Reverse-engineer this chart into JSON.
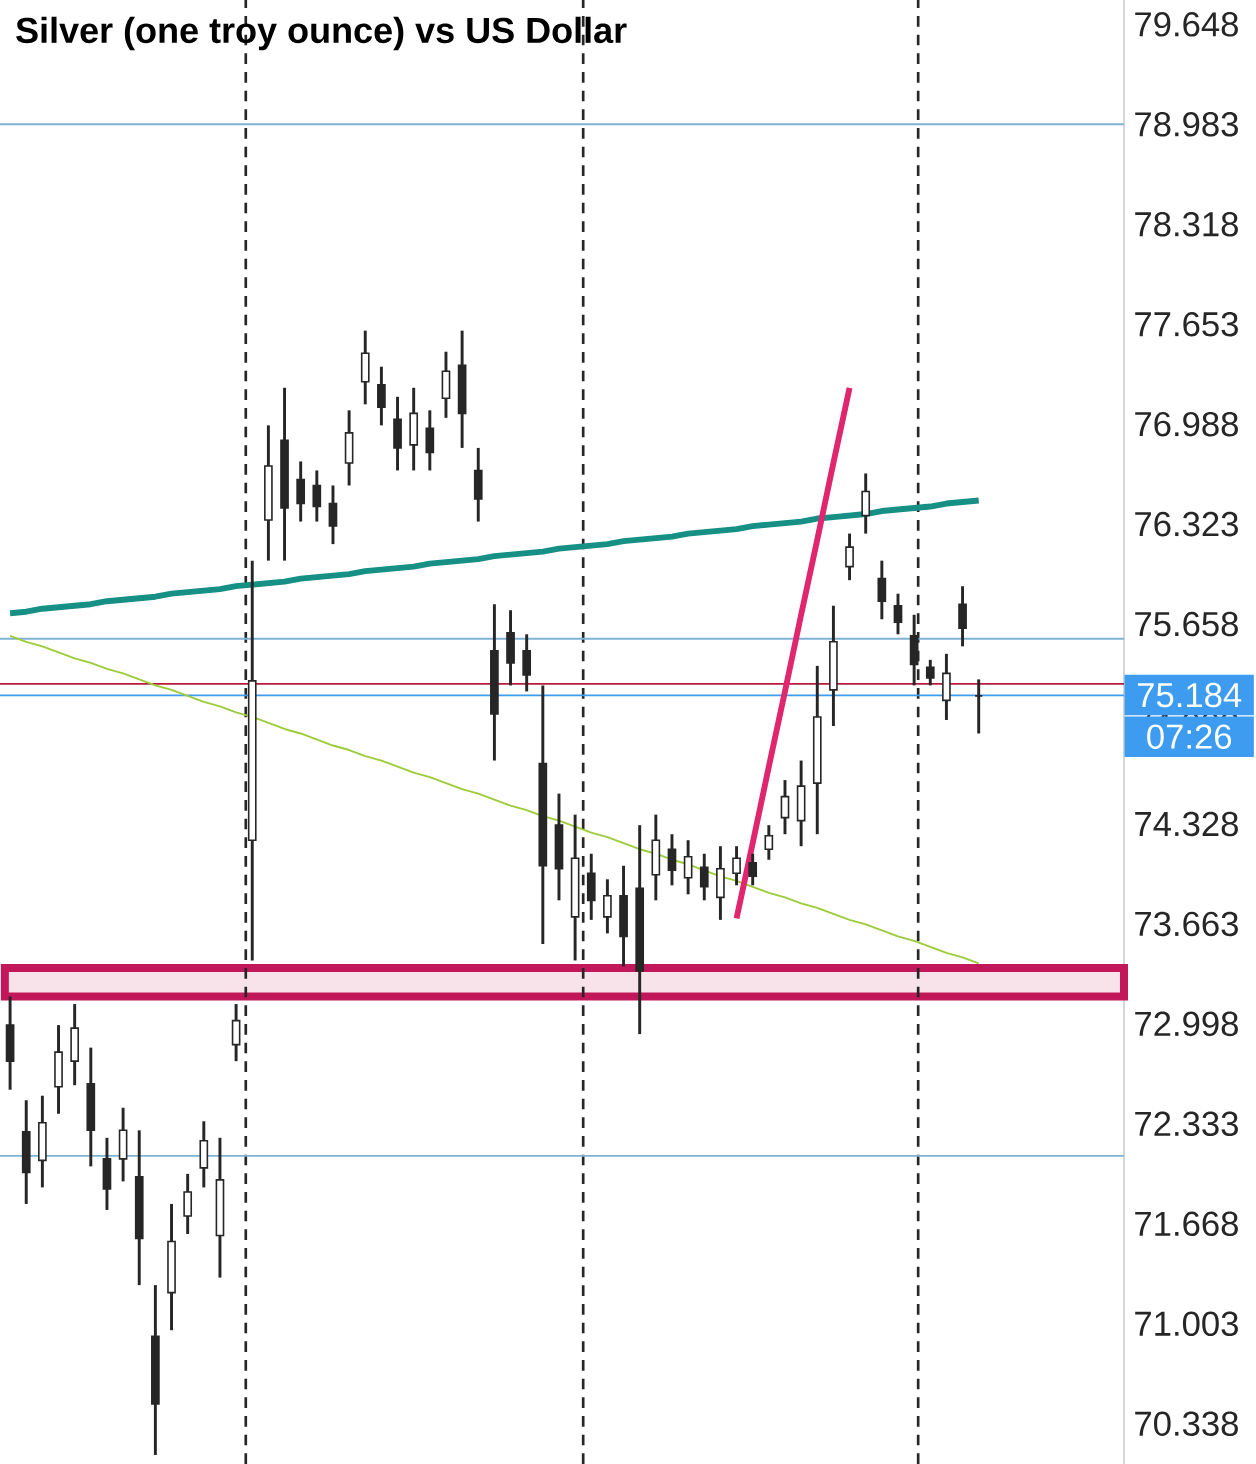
{
  "chart_data": {
    "type": "candlestick",
    "title": "Silver (one troy ounce) vs US Dollar",
    "categories": [
      null,
      null,
      null,
      null,
      null,
      null,
      null,
      null,
      null,
      null,
      null,
      null,
      null,
      null,
      null,
      null,
      null,
      null,
      null,
      null,
      null,
      null,
      null,
      null,
      null,
      null,
      null,
      null,
      null,
      null,
      null,
      null,
      null,
      null,
      null,
      null,
      null,
      null,
      null,
      null,
      null,
      null,
      null,
      null,
      null,
      null,
      null,
      null,
      null,
      null,
      null,
      null,
      null,
      null,
      null,
      null,
      null,
      null,
      null,
      null,
      null
    ],
    "ohlc": [
      [
        72.99,
        73.18,
        72.56,
        72.75
      ],
      [
        72.28,
        72.49,
        71.8,
        72.01
      ],
      [
        72.09,
        72.52,
        71.91,
        72.34
      ],
      [
        72.58,
        72.99,
        72.4,
        72.81
      ],
      [
        72.75,
        73.13,
        72.59,
        72.97
      ],
      [
        72.6,
        72.84,
        72.05,
        72.29
      ],
      [
        72.1,
        72.24,
        71.76,
        71.9
      ],
      [
        72.1,
        72.44,
        71.95,
        72.29
      ],
      [
        71.98,
        72.29,
        71.26,
        71.57
      ],
      [
        70.92,
        71.26,
        70.13,
        70.47
      ],
      [
        71.21,
        71.8,
        70.96,
        71.55
      ],
      [
        71.72,
        72.0,
        71.6,
        71.88
      ],
      [
        72.04,
        72.35,
        71.91,
        72.22
      ],
      [
        71.59,
        72.24,
        71.31,
        71.96
      ],
      [
        72.86,
        73.13,
        72.75,
        73.02
      ],
      [
        74.22,
        76.08,
        73.42,
        75.28
      ],
      [
        76.35,
        76.98,
        76.08,
        76.71
      ],
      [
        76.88,
        77.23,
        76.08,
        76.43
      ],
      [
        76.62,
        76.74,
        76.34,
        76.46
      ],
      [
        76.58,
        76.68,
        76.34,
        76.44
      ],
      [
        76.46,
        76.58,
        76.19,
        76.31
      ],
      [
        76.73,
        77.08,
        76.58,
        76.93
      ],
      [
        77.27,
        77.61,
        77.12,
        77.46
      ],
      [
        77.25,
        77.37,
        76.98,
        77.1
      ],
      [
        77.02,
        77.17,
        76.68,
        76.83
      ],
      [
        76.85,
        77.23,
        76.68,
        77.06
      ],
      [
        76.96,
        77.08,
        76.68,
        76.8
      ],
      [
        77.16,
        77.47,
        77.03,
        77.34
      ],
      [
        77.38,
        77.61,
        76.83,
        77.06
      ],
      [
        76.68,
        76.83,
        76.34,
        76.49
      ],
      [
        75.48,
        75.79,
        74.75,
        75.06
      ],
      [
        75.6,
        75.75,
        75.25,
        75.4
      ],
      [
        75.48,
        75.59,
        75.21,
        75.32
      ],
      [
        74.73,
        75.25,
        73.53,
        74.05
      ],
      [
        74.32,
        74.53,
        73.82,
        74.03
      ],
      [
        73.71,
        74.39,
        73.42,
        74.1
      ],
      [
        74.0,
        74.13,
        73.69,
        73.82
      ],
      [
        73.71,
        73.96,
        73.6,
        73.85
      ],
      [
        73.85,
        74.05,
        73.38,
        73.58
      ],
      [
        73.9,
        74.32,
        72.93,
        73.35
      ],
      [
        73.99,
        74.39,
        73.82,
        74.22
      ],
      [
        74.16,
        74.26,
        73.92,
        74.02
      ],
      [
        73.97,
        74.22,
        73.86,
        74.11
      ],
      [
        74.04,
        74.13,
        73.82,
        73.91
      ],
      [
        73.84,
        74.18,
        73.69,
        74.03
      ],
      [
        74.0,
        74.18,
        73.92,
        74.1
      ],
      [
        74.07,
        74.13,
        73.92,
        73.98
      ],
      [
        74.16,
        74.32,
        74.09,
        74.25
      ],
      [
        74.37,
        74.62,
        74.26,
        74.51
      ],
      [
        74.35,
        74.75,
        74.18,
        74.58
      ],
      [
        74.6,
        75.38,
        74.26,
        75.04
      ],
      [
        75.22,
        75.78,
        74.98,
        75.54
      ],
      [
        76.04,
        76.26,
        75.95,
        76.17
      ],
      [
        76.38,
        76.66,
        76.26,
        76.54
      ],
      [
        75.96,
        76.08,
        75.69,
        75.81
      ],
      [
        75.78,
        75.86,
        75.59,
        75.67
      ],
      [
        75.58,
        75.72,
        75.25,
        75.39
      ],
      [
        75.37,
        75.42,
        75.25,
        75.3
      ],
      [
        75.15,
        75.46,
        75.02,
        75.33
      ],
      [
        75.79,
        75.91,
        75.51,
        75.63
      ],
      [
        75.18,
        75.29,
        74.93,
        75.18
      ]
    ],
    "series": [
      {
        "type": "line",
        "color": "#168f84",
        "values": [
          75.73,
          75.74,
          75.76,
          75.77,
          75.78,
          75.79,
          75.81,
          75.82,
          75.83,
          75.84,
          75.86,
          75.87,
          75.88,
          75.89,
          75.91,
          75.92,
          75.93,
          75.94,
          75.96,
          75.97,
          75.98,
          75.99,
          76.01,
          76.02,
          76.03,
          76.04,
          76.06,
          76.07,
          76.08,
          76.09,
          76.11,
          76.12,
          76.13,
          76.14,
          76.16,
          76.17,
          76.18,
          76.19,
          76.21,
          76.22,
          76.23,
          76.24,
          76.26,
          76.27,
          76.28,
          76.29,
          76.31,
          76.32,
          76.33,
          76.34,
          76.36,
          76.37,
          76.38,
          76.39,
          76.41,
          76.42,
          76.43,
          76.44,
          76.46,
          76.47,
          76.48
        ]
      },
      {
        "type": "line",
        "color": "#9ccc3a",
        "values": [
          75.58,
          75.54,
          75.51,
          75.47,
          75.43,
          75.4,
          75.36,
          75.33,
          75.29,
          75.25,
          75.22,
          75.18,
          75.14,
          75.11,
          75.07,
          75.04,
          75.0,
          74.96,
          74.93,
          74.89,
          74.85,
          74.82,
          74.78,
          74.75,
          74.71,
          74.67,
          74.64,
          74.6,
          74.56,
          74.53,
          74.49,
          74.45,
          74.42,
          74.38,
          74.35,
          74.31,
          74.27,
          74.24,
          74.2,
          74.16,
          74.13,
          74.09,
          74.06,
          74.02,
          73.98,
          73.95,
          73.91,
          73.87,
          73.84,
          73.8,
          73.77,
          73.73,
          73.69,
          73.66,
          73.62,
          73.58,
          73.55,
          73.51,
          73.47,
          73.44,
          73.4
        ]
      },
      {
        "type": "line",
        "color": "#e0266e",
        "values": [
          null,
          null,
          null,
          null,
          null,
          null,
          null,
          null,
          null,
          null,
          null,
          null,
          null,
          null,
          null,
          null,
          null,
          null,
          null,
          null,
          null,
          null,
          null,
          null,
          null,
          null,
          null,
          null,
          null,
          null,
          null,
          null,
          null,
          null,
          null,
          null,
          null,
          null,
          null,
          null,
          null,
          null,
          null,
          null,
          null,
          73.7,
          74.2,
          74.71,
          75.21,
          75.72,
          76.22,
          76.73,
          77.23,
          null,
          null,
          null,
          null,
          null,
          null,
          null,
          null
        ]
      }
    ],
    "ylim": [
      70.07,
      79.81
    ],
    "yticks": [
      70.338,
      71.003,
      71.668,
      72.333,
      72.998,
      73.663,
      74.328,
      74.993,
      75.658,
      76.323,
      76.988,
      77.653,
      78.318,
      78.983,
      79.648
    ],
    "ref_lines": [
      {
        "axis": "y",
        "value": 78.983,
        "color": "#7fb3d5"
      },
      {
        "axis": "y",
        "value": 75.56,
        "color": "#7fb3d5"
      },
      {
        "axis": "y",
        "value": 75.26,
        "color": "#b71c3c"
      },
      {
        "axis": "y",
        "value": 72.12,
        "color": "#7fb3d5"
      },
      {
        "axis": "y",
        "value": 75.184,
        "color": "#3d9cf0",
        "label": "75.184"
      }
    ],
    "bands": [
      {
        "axis": "y",
        "from": 73.18,
        "to": 73.37,
        "color": "#c2185b"
      }
    ],
    "annotations": [
      "07:26"
    ]
  }
}
